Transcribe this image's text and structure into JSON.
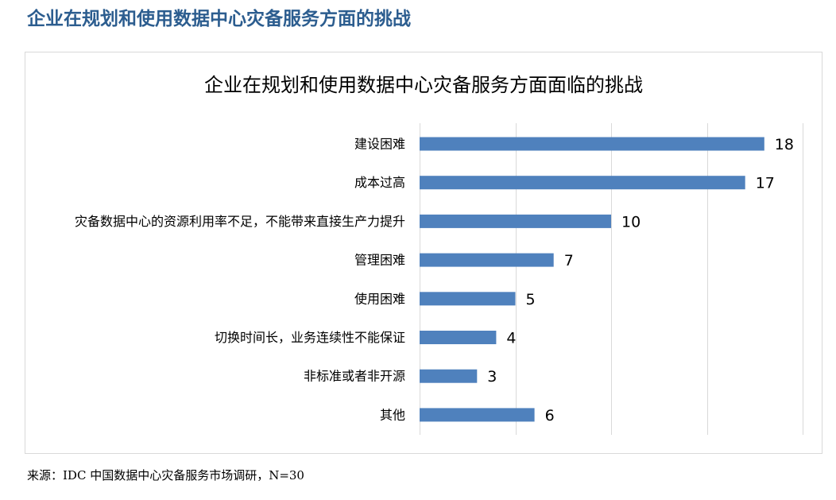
{
  "page": {
    "heading": "企业在规划和使用数据中心灾备服务方面的挑战",
    "heading_color": "#2c5d8f",
    "source_note": "来源：IDC 中国数据中心灾备服务市场调研，N=30"
  },
  "chart_data": {
    "type": "bar",
    "orientation": "horizontal",
    "title": "企业在规划和使用数据中心灾备服务方面面临的挑战",
    "categories": [
      "建设困难",
      "成本过高",
      "灾备数据中心的资源利用率不足，不能带来直接生产力提升",
      "管理困难",
      "使用困难",
      "切换时间长，业务连续性不能保证",
      "非标准或者非开源",
      "其他"
    ],
    "values": [
      18,
      17,
      10,
      7,
      5,
      4,
      3,
      6
    ],
    "xlim": [
      0,
      20
    ],
    "grid": true,
    "legend": "none",
    "bar_color": "#4f81bd",
    "grid_color": "#d9d9d9"
  }
}
